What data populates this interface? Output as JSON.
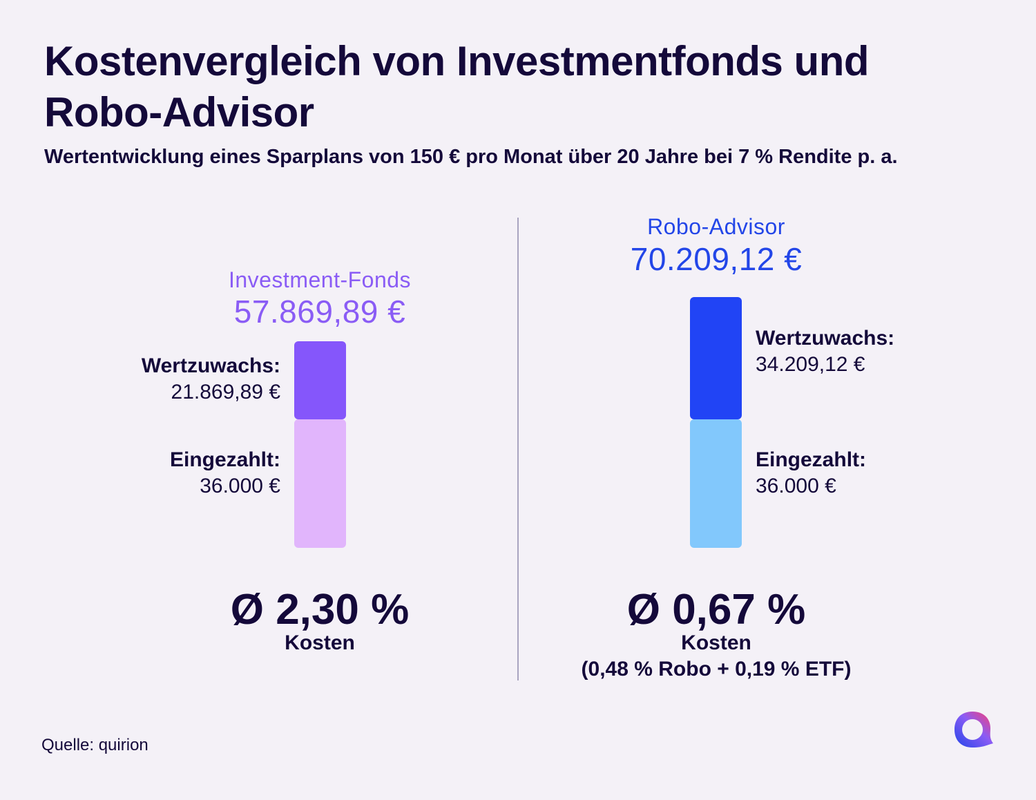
{
  "title": "Kostenvergleich von Investmentfonds und Robo-Advisor",
  "subtitle": "Wertentwicklung eines Sparplans von 150 € pro Monat über 20 Jahre bei 7 % Rendite p. a.",
  "source": "Quelle: quirion",
  "colors": {
    "fonds_title": "#8a5cf5",
    "fonds_growth": "#8556fb",
    "fonds_paid": "#e1b5fc",
    "robo_title": "#2346e8",
    "robo_growth": "#2144f5",
    "robo_paid": "#82c8fc"
  },
  "chart_data": {
    "type": "bar",
    "stacked": true,
    "categories": [
      "Investment-Fonds",
      "Robo-Advisor"
    ],
    "series": [
      {
        "name": "Eingezahlt:",
        "values": [
          36000,
          36000
        ]
      },
      {
        "name": "Wertzuwachs:",
        "values": [
          21869.89,
          34209.12
        ]
      }
    ],
    "totals": [
      57869.89,
      70209.12
    ],
    "ylim": [
      0,
      70209.12
    ],
    "grid": false
  },
  "left": {
    "title": "Investment-Fonds",
    "total": "57.869,89 €",
    "growth_label": "Wertzuwachs:",
    "growth_value": "21.869,89 €",
    "paid_label": "Eingezahlt:",
    "paid_value": "36.000 €",
    "cost": "Ø 2,30 %",
    "cost_label": "Kosten"
  },
  "right": {
    "title": "Robo-Advisor",
    "total": "70.209,12 €",
    "growth_label": "Wertzuwachs:",
    "growth_value": "34.209,12 €",
    "paid_label": "Eingezahlt:",
    "paid_value": "36.000 €",
    "cost": "Ø 0,67 %",
    "cost_label": "Kosten",
    "cost_detail": "(0,48 % Robo + 0,19 % ETF)"
  },
  "logo_icon": "quirion-logo-icon"
}
